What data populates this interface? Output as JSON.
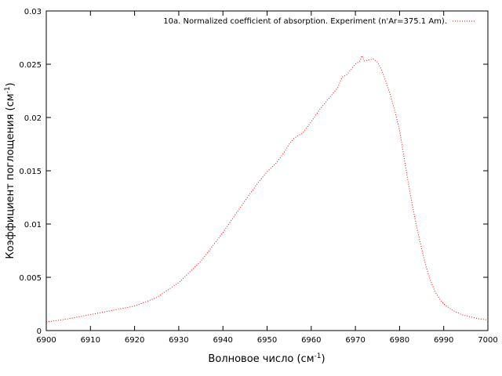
{
  "chart_data": {
    "type": "line",
    "title": "",
    "xlabel": {
      "main": "Волновое число (см",
      "sup": "-1",
      "end": ")"
    },
    "ylabel": {
      "main": "Коэффициент поглощения (см",
      "sup": "-1",
      "end": ")"
    },
    "xlim": [
      6900,
      7000
    ],
    "ylim": [
      0,
      0.03
    ],
    "x_ticks": [
      6900,
      6910,
      6920,
      6930,
      6940,
      6950,
      6960,
      6970,
      6980,
      6990,
      7000
    ],
    "x_tick_labels": [
      "6900",
      "6910",
      "6920",
      "6930",
      "6940",
      "6950",
      "6960",
      "6970",
      "6980",
      "6990",
      "7000"
    ],
    "y_ticks": [
      0,
      0.005,
      0.01,
      0.015,
      0.02,
      0.025,
      0.03
    ],
    "y_tick_labels": [
      "0",
      "0.005",
      "0.01",
      "0.015",
      "0.02",
      "0.025",
      "0.03"
    ],
    "grid": false,
    "legend_position": "top-right",
    "series": [
      {
        "name": "10a. Normalized coefficient of absorption. Experiment (n'Ar=375.1 Am).",
        "color": "#ff0000",
        "style": "dotted",
        "x": [
          6900,
          6905,
          6910,
          6915,
          6920,
          6925,
          6930,
          6935,
          6940,
          6945,
          6948,
          6950,
          6952,
          6954,
          6955,
          6956,
          6957,
          6958,
          6960,
          6962,
          6964,
          6966,
          6967,
          6968,
          6969,
          6970,
          6971,
          6971.5,
          6972,
          6973,
          6974,
          6975,
          6976,
          6977,
          6978,
          6979,
          6980,
          6981,
          6982,
          6983,
          6984,
          6985,
          6986,
          6987,
          6988,
          6989,
          6990,
          6992,
          6994,
          6996,
          6998,
          7000
        ],
        "y": [
          0.0008,
          0.0011,
          0.0015,
          0.0019,
          0.0023,
          0.0031,
          0.0045,
          0.0065,
          0.0092,
          0.0122,
          0.0139,
          0.0149,
          0.0157,
          0.0168,
          0.0175,
          0.018,
          0.0183,
          0.0185,
          0.0196,
          0.0208,
          0.0218,
          0.0228,
          0.0238,
          0.024,
          0.0245,
          0.025,
          0.0253,
          0.0258,
          0.0253,
          0.0254,
          0.0255,
          0.0252,
          0.0244,
          0.0233,
          0.022,
          0.0205,
          0.0188,
          0.0163,
          0.0138,
          0.0115,
          0.0095,
          0.0077,
          0.006,
          0.0047,
          0.0037,
          0.003,
          0.0025,
          0.0019,
          0.0015,
          0.0013,
          0.0011,
          0.001
        ]
      }
    ]
  }
}
